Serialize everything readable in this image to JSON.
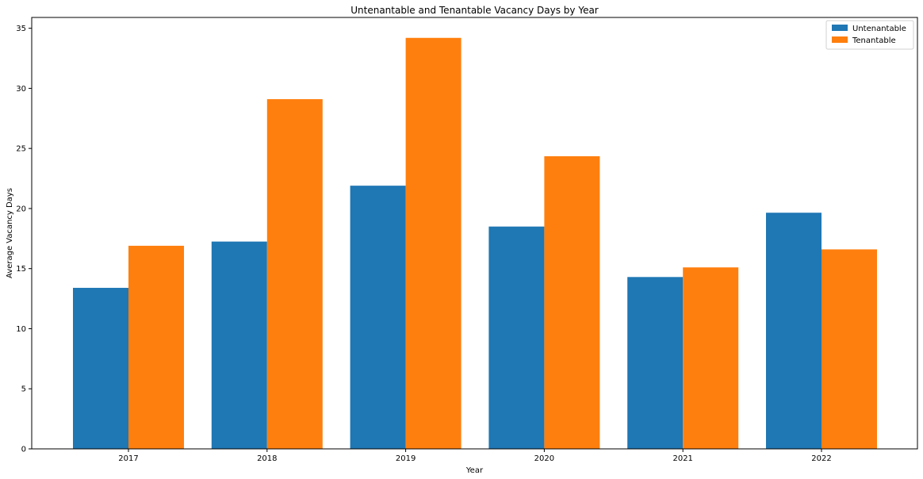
{
  "chart_data": {
    "type": "bar",
    "title": "Untenantable and Tenantable Vacancy Days by Year",
    "xlabel": "Year",
    "ylabel": "Average Vacancy Days",
    "categories": [
      "2017",
      "2018",
      "2019",
      "2020",
      "2021",
      "2022"
    ],
    "series": [
      {
        "name": "Untenantable",
        "color": "#1f77b4",
        "values": [
          13.4,
          17.25,
          21.9,
          18.5,
          14.3,
          19.65
        ]
      },
      {
        "name": "Tenantable",
        "color": "#ff7f0e",
        "values": [
          16.9,
          29.1,
          34.2,
          24.35,
          15.1,
          16.6
        ]
      }
    ],
    "ylim": [
      0,
      35.9
    ],
    "yticks": [
      0,
      5,
      10,
      15,
      20,
      25,
      30,
      35
    ],
    "grid": false,
    "legend_position": "top-right"
  }
}
